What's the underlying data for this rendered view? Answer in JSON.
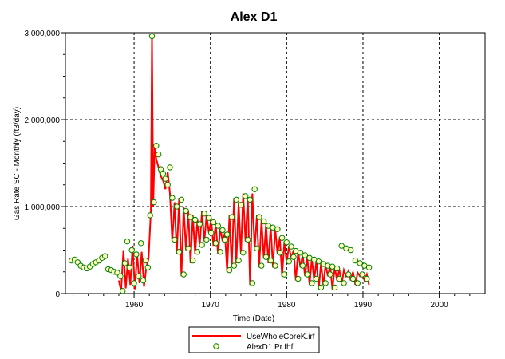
{
  "chart_data": {
    "type": "line",
    "title": "Alex D1",
    "xlabel": "Time (Date)",
    "ylabel": "Gas Rate SC - Monthly (ft3/day)",
    "xlim": [
      1951,
      2006
    ],
    "ylim": [
      0,
      3000000
    ],
    "xticks": [
      1960,
      1970,
      1980,
      1990,
      2000
    ],
    "yticks": [
      0,
      1000000,
      2000000,
      3000000
    ],
    "ytick_labels": [
      "0",
      "1,000,000",
      "2,000,000",
      "3,000,000"
    ],
    "grid": true,
    "legend": {
      "placement": "bottom-center",
      "entries": [
        "UseWholeCoreK.irf",
        "AlexD1 Pr.fhf"
      ]
    },
    "colors": {
      "simulated": "#ff0000",
      "observed_edge": "#008000",
      "observed_fill": "#ffffc0"
    },
    "series": [
      {
        "name": "UseWholeCoreK.irf",
        "style": "line",
        "x": [
          1958.0,
          1958.3,
          1958.6,
          1958.9,
          1959.2,
          1959.5,
          1959.8,
          1960.1,
          1960.4,
          1960.7,
          1961.0,
          1961.3,
          1961.6,
          1961.9,
          1962.2,
          1962.35,
          1962.5,
          1962.7,
          1962.9,
          1963.2,
          1963.5,
          1963.8,
          1964.1,
          1964.4,
          1964.7,
          1965.0,
          1965.3,
          1965.6,
          1965.9,
          1966.2,
          1966.5,
          1966.8,
          1967.1,
          1967.4,
          1967.7,
          1968.0,
          1968.3,
          1968.6,
          1968.9,
          1969.2,
          1969.5,
          1969.8,
          1970.1,
          1970.4,
          1970.7,
          1971.0,
          1971.3,
          1971.6,
          1971.9,
          1972.2,
          1972.5,
          1972.8,
          1973.1,
          1973.4,
          1973.7,
          1974.0,
          1974.3,
          1974.6,
          1974.9,
          1975.2,
          1975.5,
          1975.8,
          1976.1,
          1976.4,
          1976.7,
          1977.0,
          1977.3,
          1977.6,
          1977.9,
          1978.2,
          1978.5,
          1978.8,
          1979.1,
          1979.4,
          1979.7,
          1980.0,
          1980.3,
          1980.6,
          1980.9,
          1981.2,
          1981.5,
          1981.8,
          1982.1,
          1982.4,
          1982.7,
          1983.0,
          1983.3,
          1983.6,
          1983.9,
          1984.2,
          1984.5,
          1984.8,
          1985.1,
          1985.4,
          1985.7,
          1986.0,
          1986.3,
          1986.6,
          1986.9,
          1987.2,
          1987.5,
          1987.8,
          1988.1,
          1988.4,
          1988.7,
          1989.0,
          1989.3,
          1989.6,
          1989.9,
          1990.2,
          1990.5,
          1990.8
        ],
        "y": [
          150000,
          30000,
          500000,
          60000,
          400000,
          100000,
          550000,
          50000,
          450000,
          120000,
          480000,
          80000,
          300000,
          400000,
          950000,
          2960000,
          1000000,
          1700000,
          1550000,
          1450000,
          1350000,
          1300000,
          1200000,
          1400000,
          1150000,
          600000,
          1050000,
          450000,
          1100000,
          200000,
          1000000,
          500000,
          950000,
          350000,
          900000,
          450000,
          850000,
          550000,
          950000,
          600000,
          900000,
          700000,
          850000,
          550000,
          800000,
          450000,
          750000,
          600000,
          700000,
          250000,
          900000,
          300000,
          1100000,
          350000,
          1050000,
          450000,
          1150000,
          600000,
          1100000,
          100000,
          1150000,
          500000,
          900000,
          300000,
          850000,
          400000,
          800000,
          350000,
          780000,
          300000,
          750000,
          450000,
          650000,
          200000,
          600000,
          350000,
          550000,
          400000,
          500000,
          150000,
          480000,
          300000,
          450000,
          200000,
          420000,
          100000,
          400000,
          150000,
          380000,
          50000,
          350000,
          100000,
          330000,
          200000,
          320000,
          50000,
          300000,
          150000,
          280000,
          100000,
          270000,
          200000,
          260000,
          150000,
          250000,
          100000,
          240000,
          200000,
          230000,
          150000,
          220000,
          100000
        ]
      },
      {
        "name": "AlexD1 Pr.fhf",
        "style": "markers",
        "x": [
          1951.8,
          1952.2,
          1952.6,
          1953.0,
          1953.4,
          1953.8,
          1954.2,
          1954.6,
          1955.0,
          1955.4,
          1955.8,
          1956.2,
          1956.6,
          1957.0,
          1957.4,
          1957.8,
          1958.2,
          1958.5,
          1958.8,
          1959.1,
          1959.4,
          1959.7,
          1960.0,
          1960.3,
          1960.6,
          1960.9,
          1961.2,
          1961.5,
          1961.8,
          1962.1,
          1962.35,
          1962.6,
          1962.9,
          1963.2,
          1963.5,
          1963.8,
          1964.1,
          1964.4,
          1964.7,
          1965.0,
          1965.3,
          1965.6,
          1965.9,
          1966.2,
          1966.5,
          1966.8,
          1967.1,
          1967.4,
          1967.7,
          1968.0,
          1968.3,
          1968.6,
          1968.9,
          1969.2,
          1969.5,
          1969.8,
          1970.1,
          1970.4,
          1970.7,
          1971.0,
          1971.3,
          1971.6,
          1971.9,
          1972.2,
          1972.5,
          1972.8,
          1973.1,
          1973.4,
          1973.7,
          1974.0,
          1974.3,
          1974.6,
          1974.9,
          1975.2,
          1975.5,
          1975.8,
          1976.1,
          1976.4,
          1976.7,
          1977.0,
          1977.3,
          1977.6,
          1977.9,
          1978.2,
          1978.5,
          1978.8,
          1979.1,
          1979.4,
          1979.7,
          1980.0,
          1980.3,
          1980.6,
          1980.9,
          1981.2,
          1981.5,
          1981.8,
          1982.1,
          1982.4,
          1982.7,
          1983.0,
          1983.3,
          1983.6,
          1983.9,
          1984.2,
          1984.5,
          1984.8,
          1985.1,
          1985.4,
          1985.7,
          1986.0,
          1986.3,
          1986.6,
          1986.9,
          1987.2,
          1987.5,
          1987.8,
          1988.1,
          1988.4,
          1988.7,
          1989.0,
          1989.3,
          1989.6,
          1989.9,
          1990.2,
          1990.5,
          1990.8
        ],
        "y": [
          380000,
          390000,
          360000,
          320000,
          300000,
          290000,
          310000,
          340000,
          360000,
          380000,
          410000,
          430000,
          280000,
          270000,
          250000,
          240000,
          200000,
          30000,
          350000,
          600000,
          300000,
          500000,
          120000,
          450000,
          200000,
          580000,
          150000,
          380000,
          300000,
          900000,
          2960000,
          1050000,
          1700000,
          1600000,
          1430000,
          1380000,
          1320000,
          1250000,
          1450000,
          1100000,
          620000,
          1000000,
          480000,
          1080000,
          220000,
          950000,
          520000,
          880000,
          380000,
          850000,
          480000,
          800000,
          560000,
          920000,
          620000,
          870000,
          700000,
          820000,
          580000,
          780000,
          480000,
          730000,
          620000,
          680000,
          270000,
          880000,
          320000,
          1080000,
          380000,
          1020000,
          470000,
          1120000,
          620000,
          1080000,
          120000,
          1200000,
          520000,
          880000,
          320000,
          830000,
          420000,
          780000,
          380000,
          760000,
          320000,
          740000,
          470000,
          640000,
          220000,
          590000,
          370000,
          540000,
          420000,
          490000,
          170000,
          470000,
          320000,
          440000,
          220000,
          410000,
          120000,
          390000,
          170000,
          370000,
          70000,
          340000,
          120000,
          320000,
          220000,
          310000,
          70000,
          290000,
          170000,
          550000,
          120000,
          520000,
          220000,
          500000,
          170000,
          380000,
          120000,
          350000,
          220000,
          320000,
          170000,
          300000
        ]
      }
    ]
  }
}
